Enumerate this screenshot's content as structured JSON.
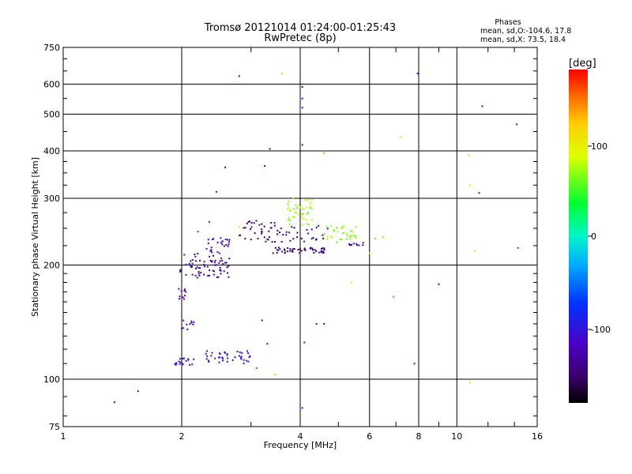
{
  "chart_data": {
    "type": "scatter",
    "title": "Tromsø 20121014 01:24:00-01:25:43",
    "subtitle": "RwPretec (8p)",
    "xlabel": "Frequency [MHz]",
    "ylabel": "Stationary phase Virtual Height [km]",
    "x_scale": "log",
    "y_scale": "log",
    "xlim": [
      1,
      16
    ],
    "ylim": [
      75,
      750
    ],
    "x_ticks": [
      "1",
      "2",
      "4",
      "6",
      "8",
      "10",
      "16"
    ],
    "y_ticks": [
      "75",
      "100",
      "200",
      "300",
      "400",
      "500",
      "600",
      "750"
    ],
    "grid": true,
    "phases_box": {
      "title": "Phases",
      "line_o": "mean, sd,O:-104.6, 17.8",
      "line_x": "mean, sd,X:  73.5, 18.4"
    },
    "colorbar": {
      "label": "[deg]",
      "ticks": [
        "100",
        "0",
        "-100"
      ],
      "range": [
        -180,
        180
      ]
    },
    "clusters": [
      {
        "f": [
          1.95,
          2.05
        ],
        "h": [
          160,
          175
        ],
        "phase": -120,
        "n": 10
      },
      {
        "f": [
          1.98,
          2.65
        ],
        "h": [
          185,
          215
        ],
        "phase": -125,
        "n": 70
      },
      {
        "f": [
          2.3,
          2.65
        ],
        "h": [
          215,
          238
        ],
        "phase": -110,
        "n": 25
      },
      {
        "f": [
          2.0,
          2.15
        ],
        "h": [
          135,
          145
        ],
        "phase": -115,
        "n": 10
      },
      {
        "f": [
          1.92,
          2.15
        ],
        "h": [
          109,
          114
        ],
        "phase": -100,
        "n": 18
      },
      {
        "f": [
          2.3,
          3.0
        ],
        "h": [
          110,
          119
        ],
        "phase": -100,
        "n": 40
      },
      {
        "f": [
          2.8,
          3.45
        ],
        "h": [
          230,
          262
        ],
        "phase": -140,
        "n": 35
      },
      {
        "f": [
          3.4,
          4.7
        ],
        "h": [
          215,
          223
        ],
        "phase": -145,
        "n": 45
      },
      {
        "f": [
          3.45,
          4.8
        ],
        "h": [
          230,
          255
        ],
        "phase": -140,
        "n": 30
      },
      {
        "f": [
          3.7,
          4.3
        ],
        "h": [
          255,
          300
        ],
        "phase": 72,
        "n": 45
      },
      {
        "f": [
          4.6,
          5.6
        ],
        "h": [
          228,
          255
        ],
        "phase": 70,
        "n": 35
      },
      {
        "f": [
          5.3,
          5.9
        ],
        "h": [
          223,
          230
        ],
        "phase": -110,
        "n": 10
      }
    ],
    "scatter": [
      {
        "f": 1.35,
        "h": 87,
        "phase": -110
      },
      {
        "f": 1.55,
        "h": 93,
        "phase": -130
      },
      {
        "f": 2.8,
        "h": 630,
        "phase": -110
      },
      {
        "f": 3.6,
        "h": 640,
        "phase": 120
      },
      {
        "f": 4.05,
        "h": 590,
        "phase": -120
      },
      {
        "f": 4.05,
        "h": 550,
        "phase": -110
      },
      {
        "f": 4.05,
        "h": 520,
        "phase": -105
      },
      {
        "f": 7.95,
        "h": 640,
        "phase": -125
      },
      {
        "f": 3.35,
        "h": 405,
        "phase": -130
      },
      {
        "f": 3.25,
        "h": 365,
        "phase": -140
      },
      {
        "f": 4.05,
        "h": 415,
        "phase": -100
      },
      {
        "f": 4.6,
        "h": 395,
        "phase": 140
      },
      {
        "f": 2.58,
        "h": 362,
        "phase": -130
      },
      {
        "f": 2.45,
        "h": 312,
        "phase": -115
      },
      {
        "f": 7.2,
        "h": 435,
        "phase": 100
      },
      {
        "f": 10.7,
        "h": 390,
        "phase": 120
      },
      {
        "f": 11.6,
        "h": 525,
        "phase": -115
      },
      {
        "f": 14.2,
        "h": 470,
        "phase": -120
      },
      {
        "f": 11.4,
        "h": 310,
        "phase": -85
      },
      {
        "f": 10.8,
        "h": 325,
        "phase": 85
      },
      {
        "f": 11.1,
        "h": 218,
        "phase": 80
      },
      {
        "f": 14.3,
        "h": 222,
        "phase": -60
      },
      {
        "f": 9.0,
        "h": 178,
        "phase": -125
      },
      {
        "f": 6.9,
        "h": 165,
        "phase": 150
      },
      {
        "f": 5.4,
        "h": 180,
        "phase": 100
      },
      {
        "f": 6.2,
        "h": 235,
        "phase": 130
      },
      {
        "f": 6.5,
        "h": 237,
        "phase": 130
      },
      {
        "f": 6.0,
        "h": 215,
        "phase": 110
      },
      {
        "f": 4.4,
        "h": 140,
        "phase": -90
      },
      {
        "f": 4.6,
        "h": 140,
        "phase": -110
      },
      {
        "f": 4.1,
        "h": 125,
        "phase": -100
      },
      {
        "f": 4.05,
        "h": 84,
        "phase": -95
      },
      {
        "f": 3.2,
        "h": 143,
        "phase": -120
      },
      {
        "f": 3.3,
        "h": 124,
        "phase": -110
      },
      {
        "f": 3.1,
        "h": 107,
        "phase": 160
      },
      {
        "f": 3.45,
        "h": 103,
        "phase": 120
      },
      {
        "f": 7.8,
        "h": 110,
        "phase": -90
      },
      {
        "f": 10.8,
        "h": 98,
        "phase": 110
      },
      {
        "f": 2.8,
        "h": 252,
        "phase": 110
      },
      {
        "f": 2.35,
        "h": 260,
        "phase": -110
      },
      {
        "f": 2.2,
        "h": 245,
        "phase": -60
      }
    ]
  }
}
